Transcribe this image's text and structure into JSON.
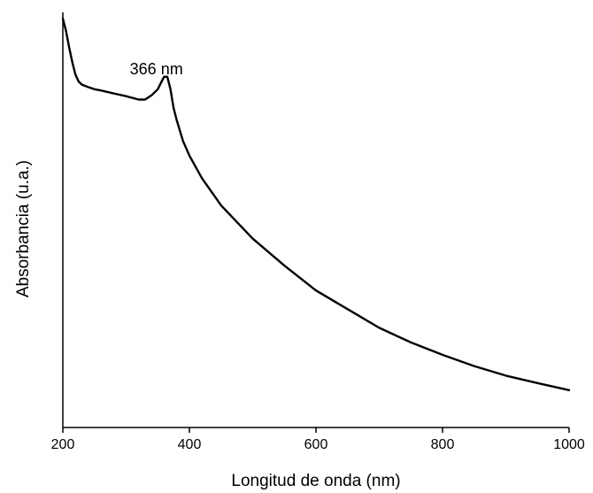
{
  "chart_data": {
    "type": "line",
    "title": "",
    "xlabel": "Longitud de onda (nm)",
    "ylabel": "Absorbancia (u.a.)",
    "xlim": [
      200,
      1000
    ],
    "ylim": [
      0,
      1
    ],
    "x_ticks": [
      {
        "value": 200,
        "label": "200"
      },
      {
        "value": 400,
        "label": "400"
      },
      {
        "value": 600,
        "label": "600"
      },
      {
        "value": 800,
        "label": "800"
      },
      {
        "value": 1000,
        "label": "1000"
      }
    ],
    "y_ticks_shown": false,
    "grid": false,
    "legend": "none",
    "line_color": "#000000",
    "annotations": [
      {
        "text": "366 nm",
        "x": 366,
        "y": 0.795
      }
    ],
    "series": [
      {
        "x": [
          200,
          205,
          210,
          215,
          220,
          225,
          230,
          240,
          250,
          260,
          280,
          300,
          320,
          330,
          340,
          350,
          355,
          360,
          365,
          370,
          375,
          380,
          390,
          400,
          420,
          450,
          500,
          550,
          600,
          650,
          700,
          750,
          800,
          850,
          900,
          950,
          1000
        ],
        "values": [
          0.985,
          0.955,
          0.915,
          0.88,
          0.85,
          0.833,
          0.826,
          0.82,
          0.815,
          0.812,
          0.805,
          0.798,
          0.79,
          0.79,
          0.8,
          0.815,
          0.83,
          0.845,
          0.845,
          0.815,
          0.77,
          0.74,
          0.69,
          0.655,
          0.6,
          0.535,
          0.455,
          0.39,
          0.33,
          0.285,
          0.24,
          0.205,
          0.175,
          0.148,
          0.125,
          0.107,
          0.09
        ]
      }
    ]
  }
}
